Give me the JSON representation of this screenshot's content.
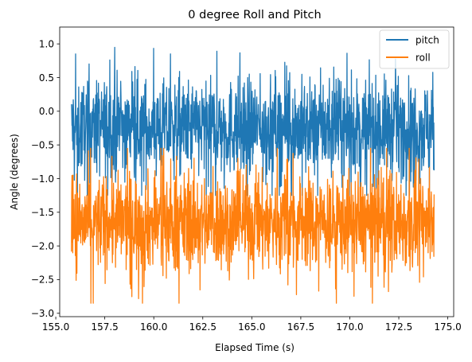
{
  "chart_data": {
    "type": "line",
    "title": "0 degree Roll and Pitch",
    "xlabel": "Elapsed Time (s)",
    "ylabel": "Angle (degrees)",
    "xlim": [
      155.2,
      175.3
    ],
    "ylim": [
      -3.05,
      1.25
    ],
    "xticks": [
      155.0,
      157.5,
      160.0,
      162.5,
      165.0,
      167.5,
      170.0,
      172.5,
      175.0
    ],
    "xtick_labels": [
      "155.0",
      "157.5",
      "160.0",
      "162.5",
      "165.0",
      "167.5",
      "170.0",
      "172.5",
      "175.0"
    ],
    "yticks": [
      1.0,
      0.5,
      0.0,
      -0.5,
      -1.0,
      -1.5,
      -2.0,
      -2.5,
      -3.0
    ],
    "ytick_labels": [
      "1.0",
      "0.5",
      "0.0",
      "−0.5",
      "−1.0",
      "−1.5",
      "−2.0",
      "−2.5",
      "−3.0"
    ],
    "grid": false,
    "legend_position": "top-right",
    "series": [
      {
        "name": "pitch",
        "color": "#1f77b4",
        "x_range": [
          155.8,
          174.3
        ],
        "center": -0.25,
        "min": -1.25,
        "max": 1.05
      },
      {
        "name": "roll",
        "color": "#ff7f0e",
        "x_range": [
          155.8,
          174.3
        ],
        "center": -1.65,
        "min": -2.85,
        "max": -0.55
      }
    ]
  }
}
